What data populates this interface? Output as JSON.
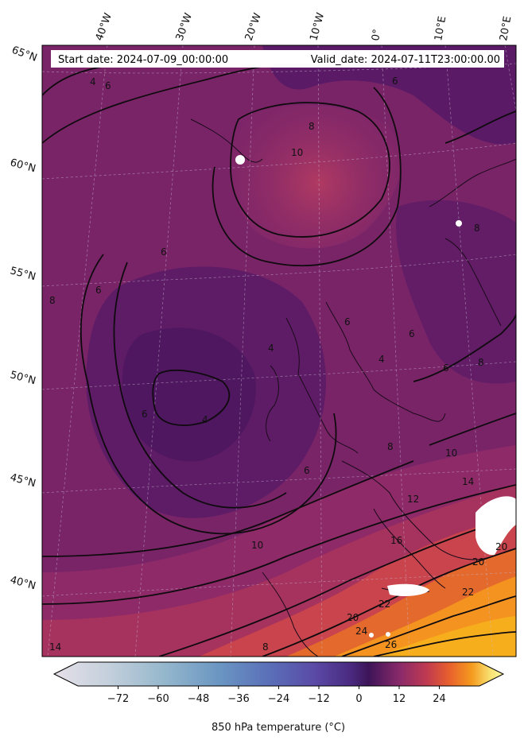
{
  "header": {
    "start_date": "Start date: 2024-07-09_00:00:00",
    "valid_date": "Valid_date: 2024-07-11T23:00:00.00"
  },
  "map": {
    "projection": "polar stereographic (North Atlantic / Europe)",
    "longitude_labels": [
      "40°W",
      "30°W",
      "20°W",
      "10°W",
      "0°",
      "10°E",
      "20°E"
    ],
    "latitude_labels": [
      "65°N",
      "60°N",
      "55°N",
      "50°N",
      "45°N",
      "40°N"
    ],
    "contour_labels": [
      "4",
      "6",
      "6",
      "8",
      "8",
      "10",
      "6",
      "6",
      "8",
      "6",
      "6",
      "4",
      "8",
      "4",
      "4",
      "6",
      "6",
      "6",
      "8",
      "10",
      "14",
      "12",
      "16",
      "20",
      "20",
      "22",
      "10",
      "20",
      "22",
      "24",
      "26",
      "14",
      "8"
    ]
  },
  "colorbar": {
    "label": "850 hPa temperature ($^\\circ$C)",
    "label_display": "850 hPa temperature (°C)",
    "tick_labels": [
      "−72",
      "−60",
      "−48",
      "−36",
      "−24",
      "−12",
      "0",
      "12",
      "24"
    ],
    "tick_values": [
      -72,
      -60,
      -48,
      -36,
      -24,
      -12,
      0,
      12,
      24
    ],
    "range": [
      -84,
      36
    ],
    "colormap": "inferno-like diverging (light grey-blue → blue → purple → dark purple at 0 → red → orange → yellow)",
    "colors": [
      "#e6e0e8",
      "#c4d0dc",
      "#93b6cc",
      "#6a95c2",
      "#5a6fb8",
      "#5a4aa6",
      "#4a2a80",
      "#3d1458",
      "#8a2a6a",
      "#c03a50",
      "#e8602c",
      "#f59b1e",
      "#f8e070",
      "#fbfba0"
    ]
  },
  "chart_data": {
    "type": "heatmap",
    "title": "",
    "variable": "850 hPa temperature",
    "units": "°C",
    "colorbar_range": [
      -84,
      36
    ],
    "colorbar_ticks": [
      -72,
      -60,
      -48,
      -36,
      -24,
      -12,
      0,
      12,
      24
    ],
    "contour_levels_labeled": [
      4,
      6,
      8,
      10,
      12,
      14,
      16,
      20,
      22,
      24,
      26
    ],
    "lon_ticks": [
      "40°W",
      "30°W",
      "20°W",
      "10°W",
      "0°",
      "10°E",
      "20°E"
    ],
    "lat_ticks": [
      "65°N",
      "60°N",
      "55°N",
      "50°N",
      "45°N",
      "40°N"
    ],
    "grid": true,
    "legend": "horizontal colorbar, bottom"
  }
}
